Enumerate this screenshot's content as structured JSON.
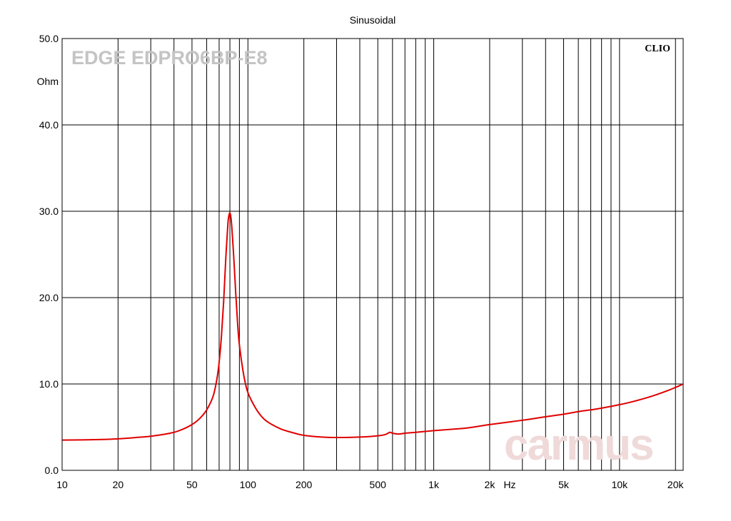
{
  "chart_data": {
    "type": "line",
    "title": "Sinusoidal",
    "watermark_model": "EDGE EDPRO6BP-E8",
    "brand": "CLIO",
    "watermark_site": "carmus",
    "xlabel": "Hz",
    "ylabel": "Ohm",
    "xscale": "log",
    "xlim": [
      10,
      22000
    ],
    "ylim": [
      0,
      50
    ],
    "grid": true,
    "x_ticks": [
      {
        "value": 10,
        "label": "10"
      },
      {
        "value": 20,
        "label": "20"
      },
      {
        "value": 50,
        "label": "50"
      },
      {
        "value": 100,
        "label": "100"
      },
      {
        "value": 200,
        "label": "200"
      },
      {
        "value": 500,
        "label": "500"
      },
      {
        "value": 1000,
        "label": "1k"
      },
      {
        "value": 2000,
        "label": "2k"
      },
      {
        "value": 5000,
        "label": "5k"
      },
      {
        "value": 10000,
        "label": "10k"
      },
      {
        "value": 20000,
        "label": "20k"
      }
    ],
    "x_minor_grid": [
      30,
      40,
      60,
      70,
      80,
      90,
      300,
      400,
      600,
      700,
      800,
      900,
      3000,
      4000,
      6000,
      7000,
      8000,
      9000
    ],
    "y_ticks": [
      {
        "value": 0,
        "label": "0.0"
      },
      {
        "value": 10,
        "label": "10.0"
      },
      {
        "value": 20,
        "label": "20.0"
      },
      {
        "value": 30,
        "label": "30.0"
      },
      {
        "value": 40,
        "label": "40.0"
      },
      {
        "value": 50,
        "label": "50.0"
      }
    ],
    "series": [
      {
        "color": "#e00000",
        "points": [
          [
            10,
            3.5
          ],
          [
            15,
            3.55
          ],
          [
            20,
            3.65
          ],
          [
            25,
            3.8
          ],
          [
            30,
            3.95
          ],
          [
            35,
            4.15
          ],
          [
            40,
            4.4
          ],
          [
            45,
            4.8
          ],
          [
            50,
            5.3
          ],
          [
            55,
            6.0
          ],
          [
            60,
            7.0
          ],
          [
            65,
            8.6
          ],
          [
            68,
            10.5
          ],
          [
            70,
            12.5
          ],
          [
            72,
            15.5
          ],
          [
            74,
            19.5
          ],
          [
            76,
            24.5
          ],
          [
            78,
            28.5
          ],
          [
            79,
            29.5
          ],
          [
            80,
            29.8
          ],
          [
            81,
            29.3
          ],
          [
            82,
            28.0
          ],
          [
            84,
            24.5
          ],
          [
            86,
            20.5
          ],
          [
            88,
            17.0
          ],
          [
            90,
            14.5
          ],
          [
            95,
            11.0
          ],
          [
            100,
            9.0
          ],
          [
            110,
            7.2
          ],
          [
            120,
            6.1
          ],
          [
            130,
            5.5
          ],
          [
            150,
            4.8
          ],
          [
            175,
            4.35
          ],
          [
            200,
            4.05
          ],
          [
            250,
            3.85
          ],
          [
            300,
            3.8
          ],
          [
            400,
            3.85
          ],
          [
            500,
            4.0
          ],
          [
            550,
            4.15
          ],
          [
            580,
            4.4
          ],
          [
            600,
            4.3
          ],
          [
            650,
            4.2
          ],
          [
            700,
            4.3
          ],
          [
            800,
            4.4
          ],
          [
            900,
            4.5
          ],
          [
            1000,
            4.6
          ],
          [
            1500,
            4.9
          ],
          [
            2000,
            5.3
          ],
          [
            3000,
            5.8
          ],
          [
            4000,
            6.2
          ],
          [
            5000,
            6.5
          ],
          [
            6000,
            6.8
          ],
          [
            7000,
            7.0
          ],
          [
            8000,
            7.2
          ],
          [
            10000,
            7.6
          ],
          [
            12000,
            8.0
          ],
          [
            15000,
            8.6
          ],
          [
            18000,
            9.2
          ],
          [
            20000,
            9.6
          ],
          [
            22000,
            10.0
          ]
        ]
      }
    ]
  }
}
